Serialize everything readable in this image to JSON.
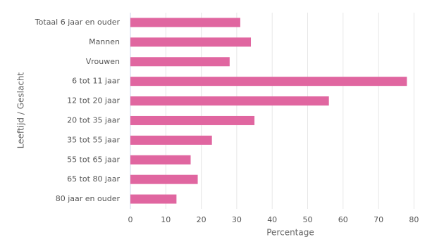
{
  "chart_data": {
    "type": "bar",
    "orientation": "horizontal",
    "x_label": "Percentage",
    "y_label": "Leeftijd / Geslacht",
    "categories": [
      "Totaal 6 jaar en ouder",
      "Mannen",
      "Vrouwen",
      "6 tot 11 jaar",
      "12 tot 20 jaar",
      "20 tot 35 jaar",
      "35 tot 55 jaar",
      "55 tot 65 jaar",
      "65 tot 80 jaar",
      "80 jaar en ouder"
    ],
    "values": [
      31,
      34,
      28,
      78,
      56,
      35,
      23,
      17,
      19,
      13
    ],
    "color": "#e066a0",
    "xlim": [
      0,
      90
    ],
    "xticks": [
      0,
      10,
      20,
      30,
      40,
      50,
      60,
      70,
      80,
      90
    ],
    "grid": true
  }
}
